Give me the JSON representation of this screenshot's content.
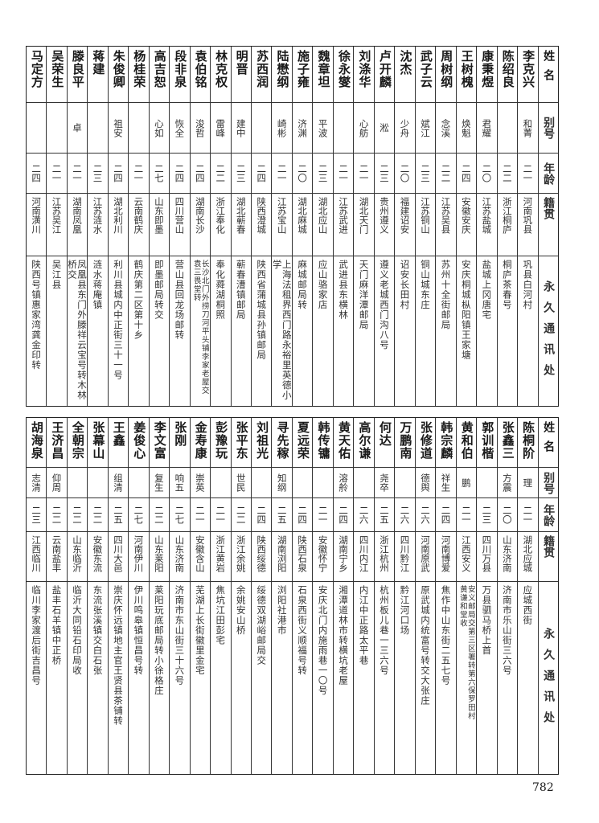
{
  "headers": {
    "name": "姓名",
    "alias": "别号",
    "age": "年龄",
    "origin": "籍贯",
    "address": "永久通讯处"
  },
  "top_table": [
    {
      "name": "李克兴",
      "alias": "和菁",
      "age": "二一",
      "origin": "河南巩县",
      "address": [
        "巩县白河村"
      ]
    },
    {
      "name": "陈绍良",
      "alias": "",
      "age": "二二",
      "origin": "浙江桐庐",
      "address": [
        "桐庐茶春号"
      ]
    },
    {
      "name": "康秉煜",
      "alias": "君耀",
      "age": "二〇",
      "origin": "江苏盐城",
      "address": [
        "盐城上冈唐宅"
      ]
    },
    {
      "name": "王树槐",
      "alias": "焕魁",
      "age": "二四",
      "origin": "安徽安庆",
      "address": [
        "安庆桐城枞阳镇王家塘"
      ]
    },
    {
      "name": "周树纲",
      "alias": "念溪",
      "age": "二二",
      "origin": "江苏吴县",
      "address": [
        "苏州十全街邮局"
      ]
    },
    {
      "name": "武子云",
      "alias": "斌江",
      "age": "二三",
      "origin": "江苏铜山",
      "address": [
        "铜山城东庄"
      ]
    },
    {
      "name": "沈杰",
      "alias": "少舟",
      "age": "二〇",
      "origin": "福建诏安",
      "address": [
        "诏安长田村"
      ]
    },
    {
      "name": "卢开麟",
      "alias": "淞",
      "age": "二三",
      "origin": "贵州遵义",
      "address": [
        "遵义老城西门沟八号"
      ]
    },
    {
      "name": "刘涤华",
      "alias": "心舫",
      "age": "二一",
      "origin": "湖北天门",
      "address": [
        "天门麻洋潭邮局"
      ]
    },
    {
      "name": "徐永燮",
      "alias": "",
      "age": "二一",
      "origin": "江苏武进",
      "address": [
        "武进县东横林"
      ]
    },
    {
      "name": "魏章坦",
      "alias": "平波",
      "age": "二三",
      "origin": "湖北应山",
      "address": [
        "应山骆家店"
      ]
    },
    {
      "name": "施子雍",
      "alias": "济渊",
      "age": "二〇",
      "origin": "湖北麻城",
      "address": [
        "麻城邮局转"
      ]
    },
    {
      "name": "陆懋纲",
      "alias": "崎彬",
      "age": "二一",
      "origin": "江苏宝山",
      "address": [
        "上海法租界西门路永裕里英德小学"
      ]
    },
    {
      "name": "苏西润",
      "alias": "",
      "age": "二四",
      "origin": "陕西澄城",
      "address": [
        "陕西省蒲城县孙镇邮局"
      ]
    },
    {
      "name": "明晋",
      "alias": "建中",
      "age": "二三",
      "origin": "湖北蕲春",
      "address": [
        "蕲春漕镇邮局"
      ]
    },
    {
      "name": "林克权",
      "alias": "雷峰",
      "age": "二二",
      "origin": "浙江奉化",
      "address": [
        "奉化蕣湖桐照"
      ]
    },
    {
      "name": "袁伯铭",
      "alias": "浚哲",
      "age": "二四",
      "origin": "湖南长沙",
      "address": [
        "长沙北门外捞刀河平头铺李家老屋交",
        "袁三畏堂转"
      ]
    },
    {
      "name": "段非泉",
      "alias": "恢全",
      "age": "二四",
      "origin": "四川营山",
      "address": [
        "营山县回龙场邮转"
      ]
    },
    {
      "name": "高吉恕",
      "alias": "心如",
      "age": "二七",
      "origin": "山东即墨",
      "address": [
        "即墨邮局转交"
      ]
    },
    {
      "name": "杨桂荣",
      "alias": "",
      "age": "二一",
      "origin": "云南鹤庆",
      "address": [
        "鹤庆第二区第十乡"
      ]
    },
    {
      "name": "朱俊卿",
      "alias": "祖安",
      "age": "二四",
      "origin": "湖北利川",
      "address": [
        "利川县城内中正街三十一号"
      ]
    },
    {
      "name": "蒋建",
      "alias": "",
      "age": "二三",
      "origin": "江苏涟水",
      "address": [
        "涟水蒋庵镇"
      ]
    },
    {
      "name": "滕良平",
      "alias": "卓",
      "age": "二一",
      "origin": "湖南凤凰",
      "address": [
        "凤凰县东门外滕祥云宝号转木林桥交"
      ]
    },
    {
      "name": "吴荣生",
      "alias": "",
      "age": "二一",
      "origin": "江苏吴江",
      "address": [
        "吴江县"
      ]
    },
    {
      "name": "马定方",
      "alias": "",
      "age": "二四",
      "origin": "河南潢川",
      "address": [
        "陕西号镇惠家湾龚金印转"
      ]
    }
  ],
  "bottom_table": [
    {
      "name": "陈桐阶",
      "alias": "理",
      "age": "二一",
      "origin": "湖北应城",
      "address": [
        "应城西街"
      ]
    },
    {
      "name": "张鑫三",
      "alias": "方震",
      "age": "二〇",
      "origin": "山东济南",
      "address": [
        "济南市乐山街三六号"
      ]
    },
    {
      "name": "郭训楷",
      "alias": "",
      "age": "二三",
      "origin": "四川万县",
      "address": [
        "万县驷马桥上首"
      ]
    },
    {
      "name": "黄和伯",
      "alias": "鹏",
      "age": "二一",
      "origin": "江西安义",
      "address": [
        "安义邮局交第三区署转第六保罗田村",
        "黄谦和堂收"
      ]
    },
    {
      "name": "韩宗麟",
      "alias": "祥生",
      "age": "二四",
      "origin": "河南博爱",
      "address": [
        "焦作中山东街二五七号"
      ]
    },
    {
      "name": "张修道",
      "alias": "德舆",
      "age": "二六",
      "origin": "河南原武",
      "address": [
        "原武城内统富号转交大张庄"
      ]
    },
    {
      "name": "万鹏南",
      "alias": "",
      "age": "二六",
      "origin": "四川黔江",
      "address": [
        "黔江河口场"
      ]
    },
    {
      "name": "何达",
      "alias": "尧卒",
      "age": "二五",
      "origin": "浙江杭州",
      "address": [
        "杭州板儿巷一三六号"
      ]
    },
    {
      "name": "高尔谦",
      "alias": "",
      "age": "二六",
      "origin": "四川内江",
      "address": [
        "内江中正路太平巷"
      ]
    },
    {
      "name": "黄天佑",
      "alias": "溶舲",
      "age": "二四",
      "origin": "湖南宁乡",
      "address": [
        "湘潭道林市转横坑老屋"
      ]
    },
    {
      "name": "韩传镛",
      "alias": "",
      "age": "二一",
      "origin": "安徽怀宁",
      "address": [
        "安庆北门内施雨巷一〇号"
      ]
    },
    {
      "name": "夏远荣",
      "alias": "",
      "age": "二四",
      "origin": "陕西石泉",
      "address": [
        "石泉西街义顺福号转"
      ]
    },
    {
      "name": "寻先稼",
      "alias": "知纲",
      "age": "二五",
      "origin": "湖南浏阳",
      "address": [
        "浏阳社港市"
      ]
    },
    {
      "name": "刘祖光",
      "alias": "",
      "age": "二四",
      "origin": "陕西绥德",
      "address": [
        "绥德双湖峪邮局交"
      ]
    },
    {
      "name": "张平东",
      "alias": "世民",
      "age": "二二",
      "origin": "浙江余姚",
      "address": [
        "余姚安山桥"
      ]
    },
    {
      "name": "彭豫玩",
      "alias": "",
      "age": "二一",
      "origin": "浙江黄岩",
      "address": [
        "焦坑江田彭宅"
      ]
    },
    {
      "name": "金寿康",
      "alias": "崇英",
      "age": "二一",
      "origin": "安徽含山",
      "address": [
        "芜湖上长街徽里金宅"
      ]
    },
    {
      "name": "张刚",
      "alias": "响五",
      "age": "二七",
      "origin": "山东济南",
      "address": [
        "济南市东山街三十六号"
      ]
    },
    {
      "name": "李文富",
      "alias": "复生",
      "age": "二二",
      "origin": "山东莱阳",
      "address": [
        "莱阳玩底邮局转小徐格庄"
      ]
    },
    {
      "name": "姜俊心",
      "alias": "",
      "age": "二七",
      "origin": "河南伊川",
      "address": [
        "伊川鸣皋镇恒昌号转"
      ]
    },
    {
      "name": "王鑫",
      "alias": "组清",
      "age": "二五",
      "origin": "四川大邑",
      "address": [
        "崇庆怀远镇地主官王贤县茶铺转"
      ]
    },
    {
      "name": "张幕山",
      "alias": "",
      "age": "二二",
      "origin": "安徽东流",
      "address": [
        "东流张溪镇交白石张"
      ]
    },
    {
      "name": "全朝宗",
      "alias": "",
      "age": "二二",
      "origin": "山东临沂",
      "address": [
        "临沂大同铅石印局收"
      ]
    },
    {
      "name": "王济昌",
      "alias": "仰周",
      "age": "二二",
      "origin": "云南盐丰",
      "address": [
        "盐丰石羊镇中正桥"
      ]
    },
    {
      "name": "胡海泉",
      "alias": "志清",
      "age": "二三",
      "origin": "江西临川",
      "address": [
        "临川李家渡后街吉昌号"
      ]
    }
  ],
  "page_number": "782"
}
